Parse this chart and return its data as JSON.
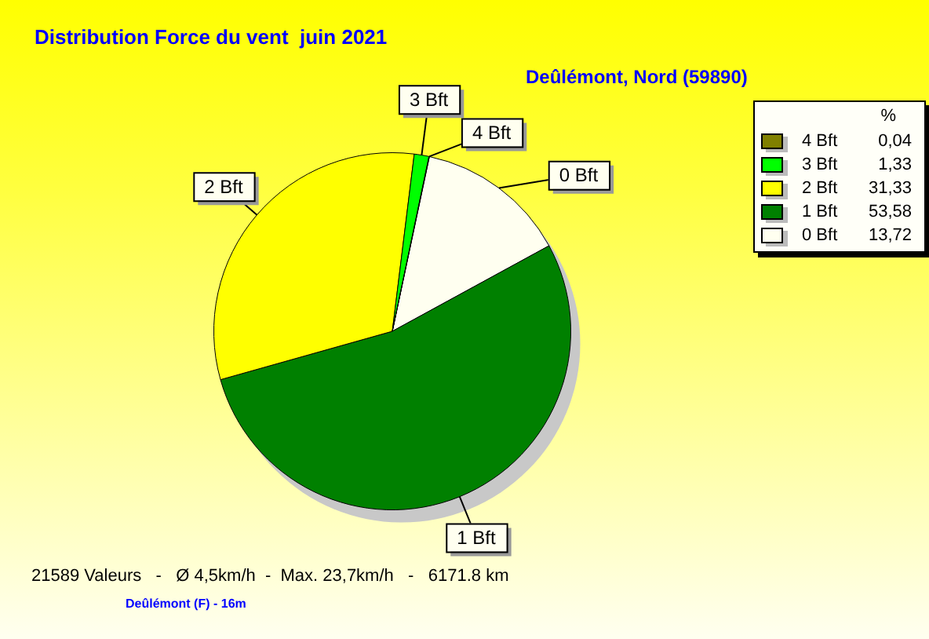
{
  "chart_data": {
    "type": "pie",
    "title": "Distribution Force du vent  juin 2021",
    "subtitle": "Deûlémont, Nord (59890)",
    "categories": [
      "4 Bft",
      "3 Bft",
      "2 Bft",
      "1 Bft",
      "0 Bft"
    ],
    "values": [
      0.04,
      1.33,
      31.33,
      53.58,
      13.72
    ],
    "value_labels": [
      "0,04",
      "1,33",
      "31,33",
      "53,58",
      "13,72"
    ],
    "colors": [
      "#808000",
      "#00ff00",
      "#ffff00",
      "#008000",
      "#fffff0"
    ],
    "legend_title": "%",
    "legend": "top right",
    "annotations": [
      "21589 Valeurs   -   Ø 4,5km/h  -  Max. 23,7km/h   -   6171.8 km",
      "Deûlémont (F) - 16m"
    ]
  }
}
